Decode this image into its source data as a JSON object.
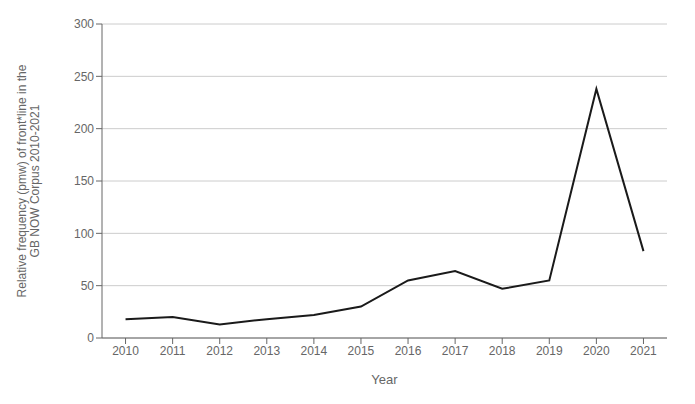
{
  "chart_data": {
    "type": "line",
    "x": [
      2010,
      2011,
      2012,
      2013,
      2014,
      2015,
      2016,
      2017,
      2018,
      2019,
      2020,
      2021
    ],
    "values": [
      18,
      20,
      13,
      18,
      22,
      30,
      55,
      64,
      47,
      55,
      238,
      83
    ],
    "color": "#1a1a1a",
    "xlabel": "Year",
    "ylabel": "Relative frequency (pmw) of front*line in the\nGB NOW Corpus 2010-2021",
    "xlim": [
      2009.5,
      2021.5
    ],
    "xticks": [
      2010,
      2011,
      2012,
      2013,
      2014,
      2015,
      2016,
      2017,
      2018,
      2019,
      2020,
      2021
    ],
    "ylim": [
      0,
      300
    ],
    "yticks": [
      0,
      50,
      100,
      150,
      200,
      250,
      300
    ],
    "grid": true
  }
}
